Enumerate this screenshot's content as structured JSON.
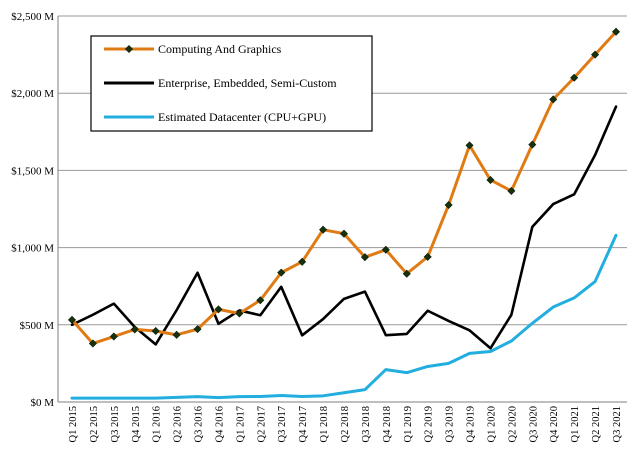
{
  "chart_data": {
    "type": "line",
    "title": "",
    "xlabel": "",
    "ylabel": "",
    "ylim": [
      0,
      2500
    ],
    "yticks": [
      0,
      500,
      1000,
      1500,
      2000,
      2500
    ],
    "ytick_labels": [
      "$0 M",
      "$500 M",
      "$1,000 M",
      "$1,500 M",
      "$2,000 M",
      "$2,500 M"
    ],
    "grid": "horizontal",
    "legend_position": "top-left",
    "categories": [
      "Q1 2015",
      "Q2 2015",
      "Q3 2015",
      "Q4 2015",
      "Q1 2016",
      "Q2 2016",
      "Q3 2016",
      "Q4 2016",
      "Q1 2017",
      "Q2 2017",
      "Q3 2017",
      "Q4 2017",
      "Q1 2018",
      "Q2 2018",
      "Q3 2018",
      "Q4 2018",
      "Q1 2019",
      "Q2 2019",
      "Q3 2019",
      "Q4 2019",
      "Q1 2020",
      "Q2 2020",
      "Q3 2020",
      "Q4 2020",
      "Q1 2021",
      "Q2 2021",
      "Q3 2021"
    ],
    "series": [
      {
        "name": "Computing And Graphics",
        "color": "#e07b14",
        "marker": "diamond",
        "marker_fill": "#17310d",
        "values": [
          532,
          379,
          424,
          470,
          460,
          435,
          472,
          600,
          573,
          659,
          838,
          908,
          1116,
          1090,
          938,
          986,
          831,
          940,
          1276,
          1662,
          1438,
          1367,
          1667,
          1960,
          2100,
          2250,
          2398
        ]
      },
      {
        "name": "Enterprise, Embedded, Semi-Custom",
        "color": "#000000",
        "marker": "none",
        "values": [
          500,
          565,
          637,
          486,
          373,
          595,
          837,
          507,
          593,
          562,
          746,
          432,
          537,
          668,
          715,
          433,
          441,
          591,
          525,
          464,
          348,
          565,
          1134,
          1282,
          1345,
          1600,
          1913
        ]
      },
      {
        "name": "Estimated Datacenter (CPU+GPU)",
        "color": "#22aedf",
        "marker": "none",
        "values": [
          25,
          25,
          25,
          25,
          25,
          30,
          35,
          28,
          35,
          36,
          42,
          36,
          40,
          60,
          80,
          210,
          190,
          230,
          250,
          315,
          327,
          395,
          510,
          615,
          674,
          780,
          1080
        ]
      }
    ]
  }
}
